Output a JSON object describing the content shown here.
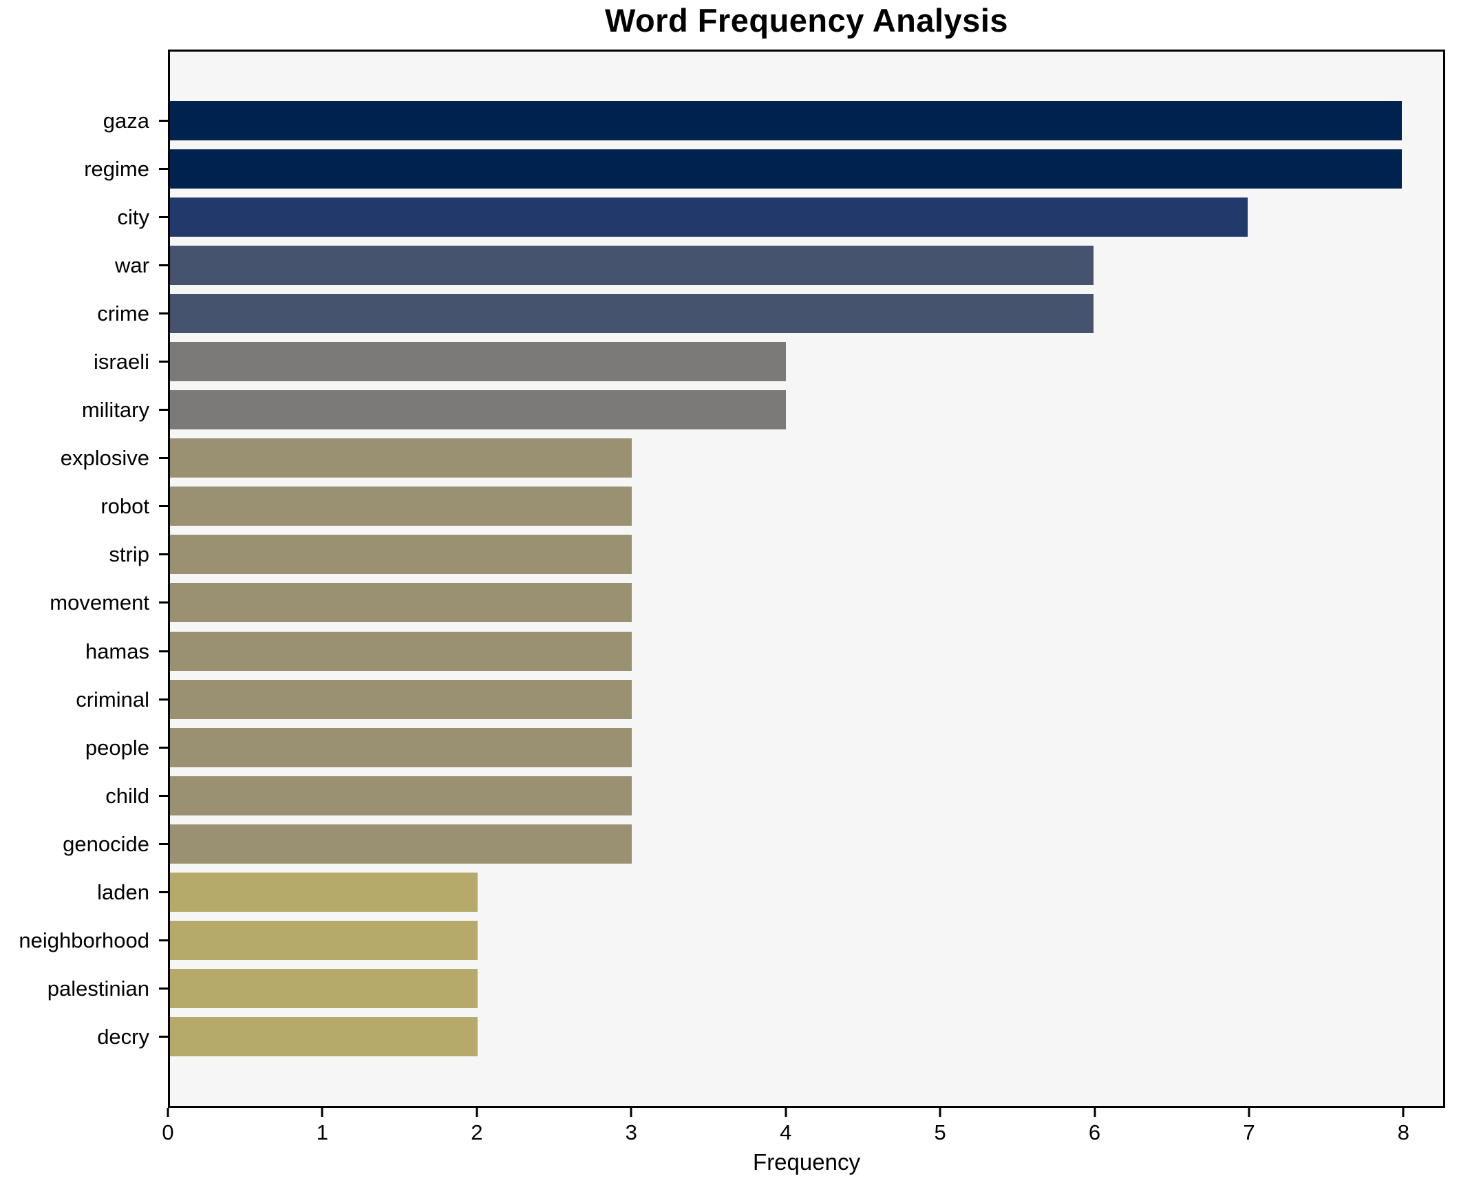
{
  "chart_data": {
    "type": "bar",
    "orientation": "horizontal",
    "title": "Word Frequency Analysis",
    "xlabel": "Frequency",
    "ylabel": "",
    "xlim": [
      0,
      8.27
    ],
    "xticks": [
      "0",
      "1",
      "2",
      "3",
      "4",
      "5",
      "6",
      "7",
      "8"
    ],
    "grid": false,
    "legend_position": "none",
    "plot_background": "#F6F6F7",
    "spine_color": "#000000",
    "categories": [
      "gaza",
      "regime",
      "city",
      "war",
      "crime",
      "israeli",
      "military",
      "explosive",
      "robot",
      "strip",
      "movement",
      "hamas",
      "criminal",
      "people",
      "child",
      "genocide",
      "laden",
      "neighborhood",
      "palestinian",
      "decry"
    ],
    "values": [
      8,
      8,
      7,
      6,
      6,
      4,
      4,
      3,
      3,
      3,
      3,
      3,
      3,
      3,
      3,
      3,
      2,
      2,
      2,
      2
    ],
    "bar_colors": [
      "#00224E",
      "#00224E",
      "#21396B",
      "#45536F",
      "#45536F",
      "#7B7A78",
      "#7B7A78",
      "#9A9172",
      "#9A9172",
      "#9A9172",
      "#9A9172",
      "#9A9172",
      "#9A9172",
      "#9A9172",
      "#9A9172",
      "#9A9172",
      "#B6AA6A",
      "#B6AA6A",
      "#B6AA6A",
      "#B6AA6A"
    ]
  }
}
